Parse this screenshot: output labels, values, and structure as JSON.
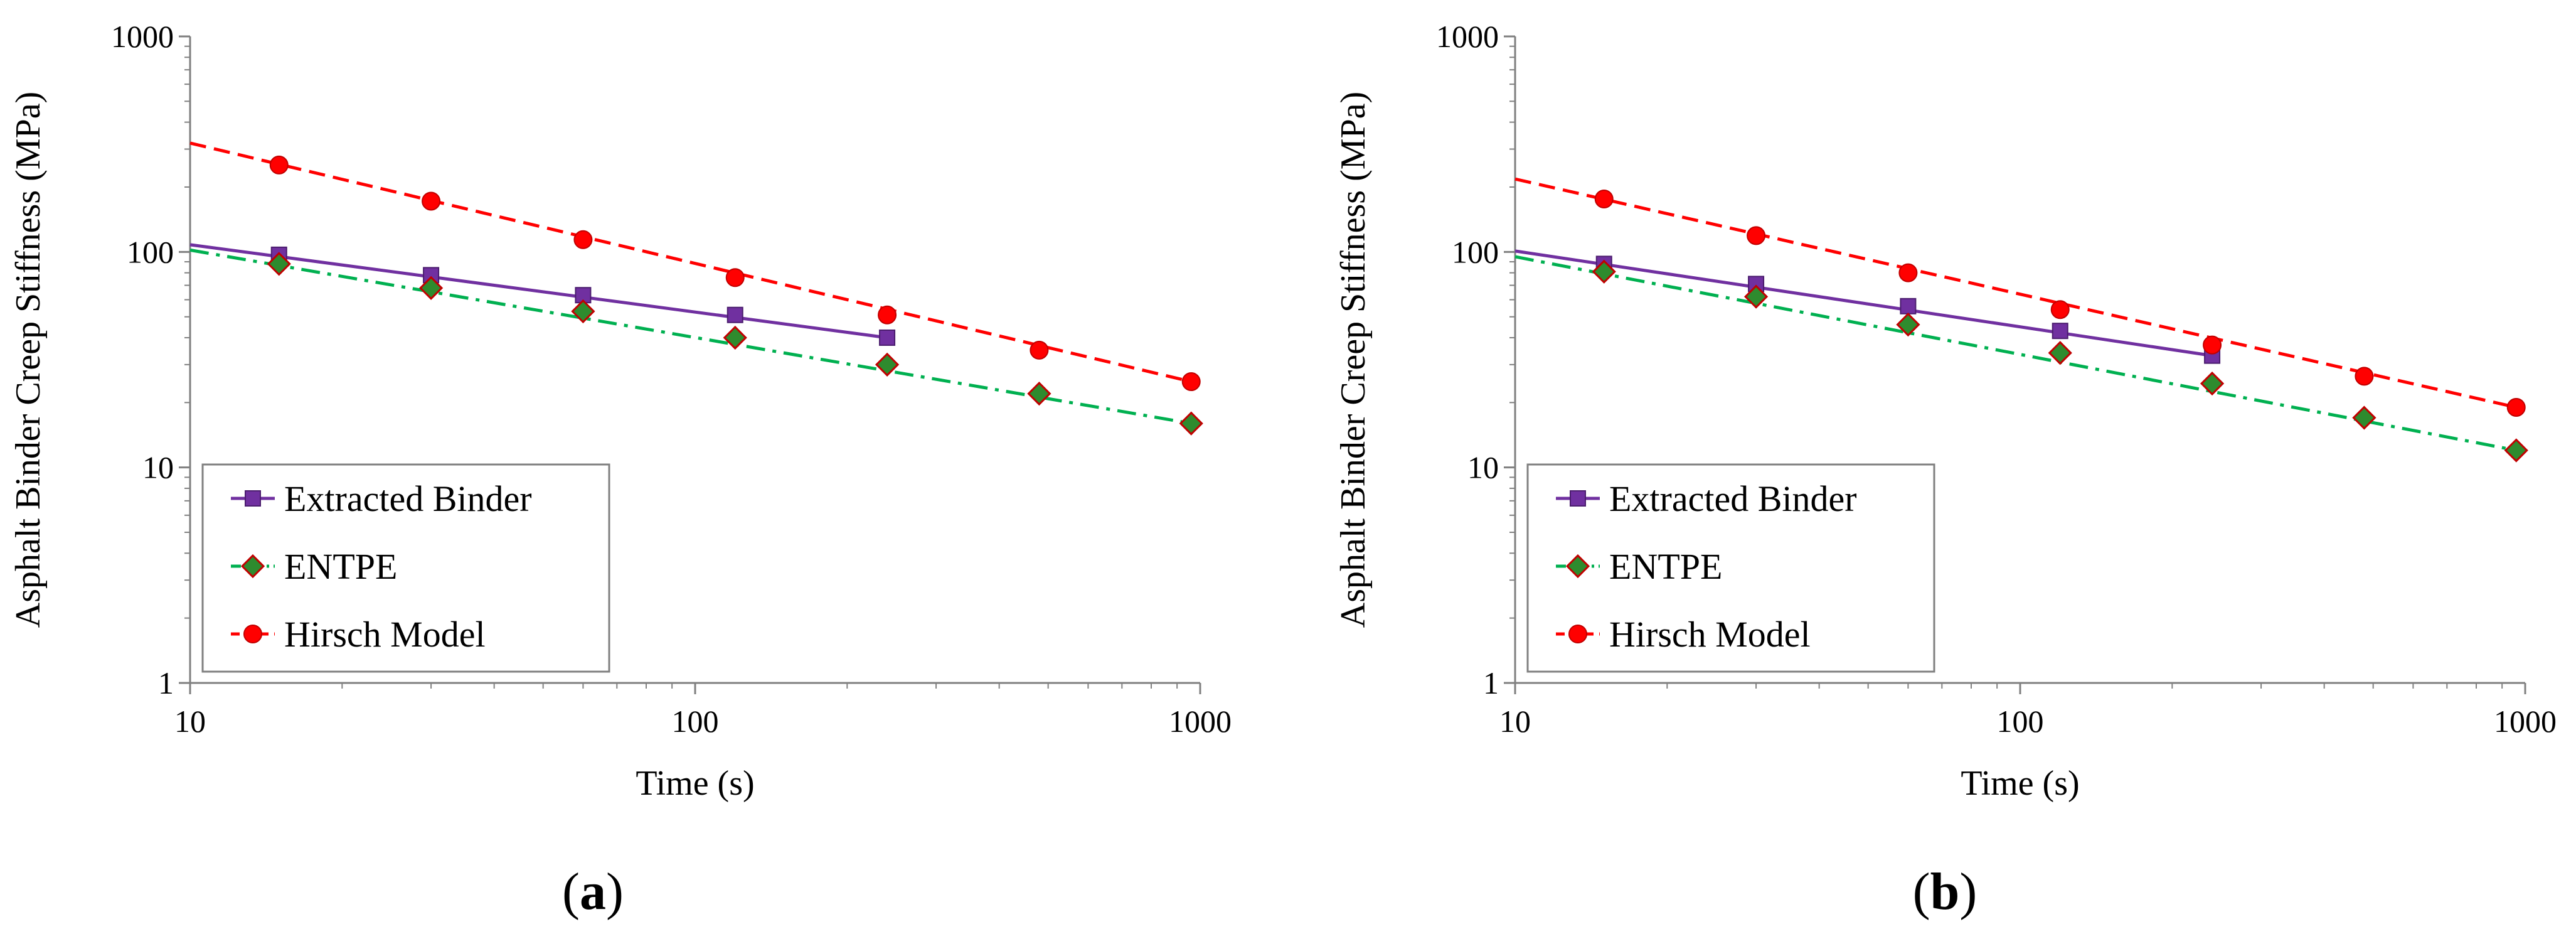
{
  "chart_data": [
    {
      "type": "line",
      "panel_label": {
        "open": "(",
        "letter": "a",
        "close": ")"
      },
      "xlabel": "Time (s)",
      "ylabel": "Asphalt Binder Creep Stiffness (MPa)",
      "xscale": "log",
      "yscale": "log",
      "xlim": [
        10,
        1000
      ],
      "ylim": [
        1,
        1000
      ],
      "xticks": [
        10,
        100,
        1000
      ],
      "yticks": [
        1,
        10,
        100,
        1000
      ],
      "legend_position": "lower-left",
      "series": [
        {
          "name": "Extracted Binder",
          "color": "#7030a0",
          "marker": "square",
          "line": "solid",
          "x": [
            15,
            30,
            60,
            120,
            240
          ],
          "y": [
            97,
            78,
            63,
            51,
            40
          ],
          "fit": {
            "x": [
              10,
              240
            ],
            "y": [
              108,
              40
            ]
          }
        },
        {
          "name": "ENTPE",
          "color": "#00b050",
          "marker_fill": "#2e8b2e",
          "marker_edge": "#c00000",
          "marker": "diamond",
          "line": "dashdot",
          "x": [
            15,
            30,
            60,
            120,
            240,
            480,
            960
          ],
          "y": [
            88,
            68,
            53,
            40,
            30,
            22,
            16
          ],
          "fit": {
            "x": [
              10,
              960
            ],
            "y": [
              102,
              16
            ]
          }
        },
        {
          "name": "Hirsch Model",
          "color": "#ff0000",
          "marker": "circle",
          "line": "dashed",
          "x": [
            15,
            30,
            60,
            120,
            240,
            480,
            960
          ],
          "y": [
            253,
            172,
            114,
            76,
            51,
            35,
            25
          ],
          "fit": {
            "x": [
              10,
              960
            ],
            "y": [
              320,
              25
            ]
          }
        }
      ]
    },
    {
      "type": "line",
      "panel_label": {
        "open": "(",
        "letter": "b",
        "close": ")"
      },
      "xlabel": "Time (s)",
      "ylabel": "Asphalt Binder Creep Stiffness (MPa)",
      "xscale": "log",
      "yscale": "log",
      "xlim": [
        10,
        1000
      ],
      "ylim": [
        1,
        1000
      ],
      "xticks": [
        10,
        100,
        1000
      ],
      "yticks": [
        1,
        10,
        100,
        1000
      ],
      "legend_position": "lower-left",
      "series": [
        {
          "name": "Extracted Binder",
          "color": "#7030a0",
          "marker": "square",
          "line": "solid",
          "x": [
            15,
            30,
            60,
            120,
            240
          ],
          "y": [
            88,
            71,
            56,
            43,
            33
          ],
          "fit": {
            "x": [
              10,
              240
            ],
            "y": [
              101,
              33
            ]
          }
        },
        {
          "name": "ENTPE",
          "color": "#00b050",
          "marker_fill": "#2e8b2e",
          "marker_edge": "#c00000",
          "marker": "diamond",
          "line": "dashdot",
          "x": [
            15,
            30,
            60,
            120,
            240,
            480,
            960
          ],
          "y": [
            81,
            62,
            46,
            34,
            24.5,
            17,
            12
          ],
          "fit": {
            "x": [
              10,
              960
            ],
            "y": [
              95,
              12
            ]
          }
        },
        {
          "name": "Hirsch Model",
          "color": "#ff0000",
          "marker": "circle",
          "line": "dashed",
          "x": [
            15,
            30,
            60,
            120,
            240,
            480,
            960
          ],
          "y": [
            176,
            119,
            80,
            54,
            37,
            26.5,
            19
          ],
          "fit": {
            "x": [
              10,
              960
            ],
            "y": [
              218,
              19
            ]
          }
        }
      ]
    }
  ]
}
